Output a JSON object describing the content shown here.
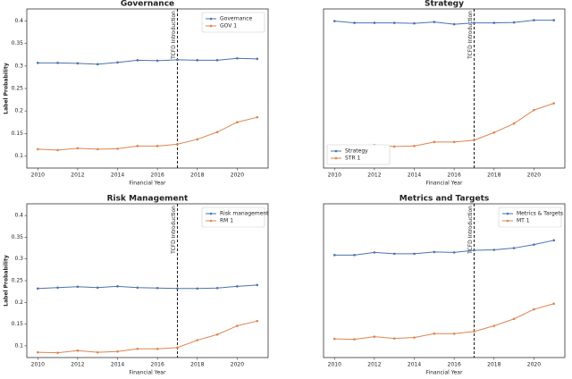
{
  "chart_data": [
    {
      "type": "line",
      "title": "Governance",
      "xlabel": "Financial Year",
      "ylabel": "Label Probability",
      "x": [
        2010,
        2011,
        2012,
        2013,
        2014,
        2015,
        2016,
        2017,
        2018,
        2019,
        2020,
        2021
      ],
      "series": [
        {
          "name": "Governance",
          "color": "#4c72b0",
          "values": [
            0.307,
            0.307,
            0.306,
            0.304,
            0.308,
            0.313,
            0.312,
            0.314,
            0.313,
            0.313,
            0.317,
            0.316
          ]
        },
        {
          "name": "GOV 1",
          "color": "#dd8452",
          "values": [
            0.115,
            0.113,
            0.117,
            0.115,
            0.116,
            0.122,
            0.122,
            0.126,
            0.137,
            0.153,
            0.175,
            0.186
          ]
        }
      ],
      "xlim": [
        2009.45,
        2021.55
      ],
      "xticks": [
        2010,
        2012,
        2014,
        2016,
        2018,
        2020
      ],
      "ylim": [
        0.073,
        0.427
      ],
      "yticks": [
        0.1,
        0.15,
        0.2,
        0.25,
        0.3,
        0.35,
        0.4
      ],
      "vline": 2017,
      "annotation": "TCFD Introduction",
      "legend": "upper right"
    },
    {
      "type": "line",
      "title": "Strategy",
      "xlabel": "Financial Year",
      "x": [
        2010,
        2011,
        2012,
        2013,
        2014,
        2015,
        2016,
        2017,
        2018,
        2019,
        2020,
        2021
      ],
      "series": [
        {
          "name": "Strategy",
          "color": "#4c72b0",
          "values": [
            0.4,
            0.396,
            0.396,
            0.396,
            0.395,
            0.398,
            0.393,
            0.396,
            0.396,
            0.397,
            0.402,
            0.402
          ]
        },
        {
          "name": "STR 1",
          "color": "#dd8452",
          "values": [
            0.121,
            0.119,
            0.124,
            0.121,
            0.122,
            0.131,
            0.131,
            0.135,
            0.152,
            0.172,
            0.202,
            0.217
          ]
        }
      ],
      "xlim": [
        2009.45,
        2021.55
      ],
      "xticks": [
        2010,
        2012,
        2014,
        2016,
        2018,
        2020
      ],
      "ylim": [
        0.073,
        0.427
      ],
      "vline": 2017,
      "annotation": "TCFD Introduction",
      "legend": "lower left"
    },
    {
      "type": "line",
      "title": "Risk Management",
      "xlabel": "Financial Year",
      "ylabel": "Label Probability",
      "x": [
        2010,
        2011,
        2012,
        2013,
        2014,
        2015,
        2016,
        2017,
        2018,
        2019,
        2020,
        2021
      ],
      "series": [
        {
          "name": "Risk management",
          "color": "#4c72b0",
          "values": [
            0.232,
            0.234,
            0.236,
            0.234,
            0.237,
            0.234,
            0.233,
            0.232,
            0.232,
            0.233,
            0.237,
            0.24
          ]
        },
        {
          "name": "RM 1",
          "color": "#dd8452",
          "values": [
            0.085,
            0.084,
            0.089,
            0.085,
            0.087,
            0.093,
            0.093,
            0.096,
            0.113,
            0.126,
            0.146,
            0.157
          ]
        }
      ],
      "xlim": [
        2009.45,
        2021.55
      ],
      "xticks": [
        2010,
        2012,
        2014,
        2016,
        2018,
        2020
      ],
      "ylim": [
        0.073,
        0.427
      ],
      "yticks": [
        0.1,
        0.15,
        0.2,
        0.25,
        0.3,
        0.35,
        0.4
      ],
      "vline": 2017,
      "annotation": "TCFD Introduction",
      "legend": "upper right"
    },
    {
      "type": "line",
      "title": "Metrics and Targets",
      "xlabel": "Financial Year",
      "x": [
        2010,
        2011,
        2012,
        2013,
        2014,
        2015,
        2016,
        2017,
        2018,
        2019,
        2020,
        2021
      ],
      "series": [
        {
          "name": "Metrics & Targets",
          "color": "#4c72b0",
          "values": [
            0.309,
            0.309,
            0.315,
            0.312,
            0.312,
            0.316,
            0.315,
            0.32,
            0.321,
            0.325,
            0.333,
            0.343
          ]
        },
        {
          "name": "MT 1",
          "color": "#dd8452",
          "values": [
            0.116,
            0.115,
            0.121,
            0.117,
            0.119,
            0.128,
            0.128,
            0.133,
            0.146,
            0.162,
            0.184,
            0.197
          ]
        }
      ],
      "xlim": [
        2009.45,
        2021.55
      ],
      "xticks": [
        2010,
        2012,
        2014,
        2016,
        2018,
        2020
      ],
      "ylim": [
        0.073,
        0.427
      ],
      "vline": 2017,
      "annotation": "TCFD Introduction",
      "legend": "upper right"
    }
  ]
}
